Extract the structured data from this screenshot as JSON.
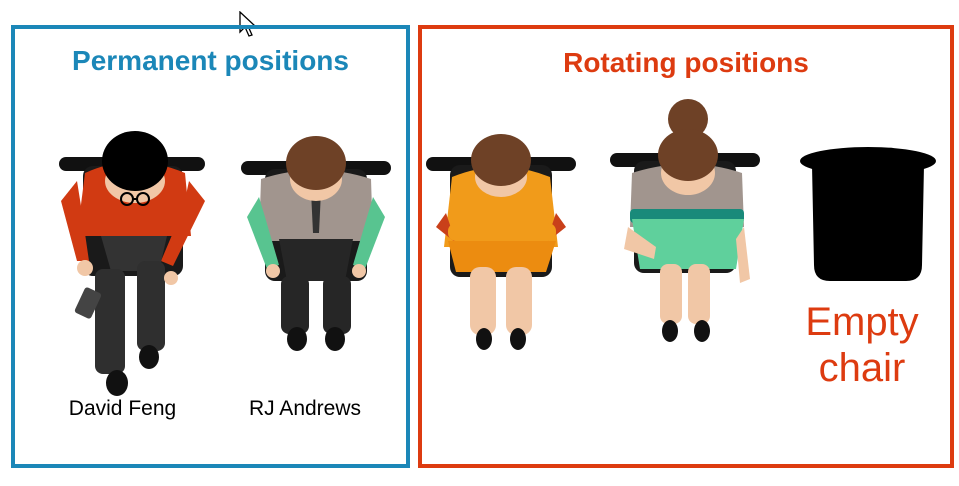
{
  "colors": {
    "permanent_border": "#1b87b8",
    "rotating_border": "#dd3b10",
    "empty_label": "#dd3b10"
  },
  "permanent": {
    "title": "Permanent positions",
    "people": [
      {
        "name": "David Feng",
        "icon": "seated-person-red-sweater-glasses"
      },
      {
        "name": "RJ Andrews",
        "icon": "seated-person-teal-shirt"
      }
    ]
  },
  "rotating": {
    "title": "Rotating positions",
    "people": [
      {
        "icon": "seated-woman-orange-dress"
      },
      {
        "icon": "seated-woman-green-skirt-bun"
      }
    ],
    "empty_chair": {
      "icon": "empty-chair-icon",
      "label": "Empty chair"
    }
  },
  "cursor": {
    "icon": "mouse-pointer-icon"
  }
}
